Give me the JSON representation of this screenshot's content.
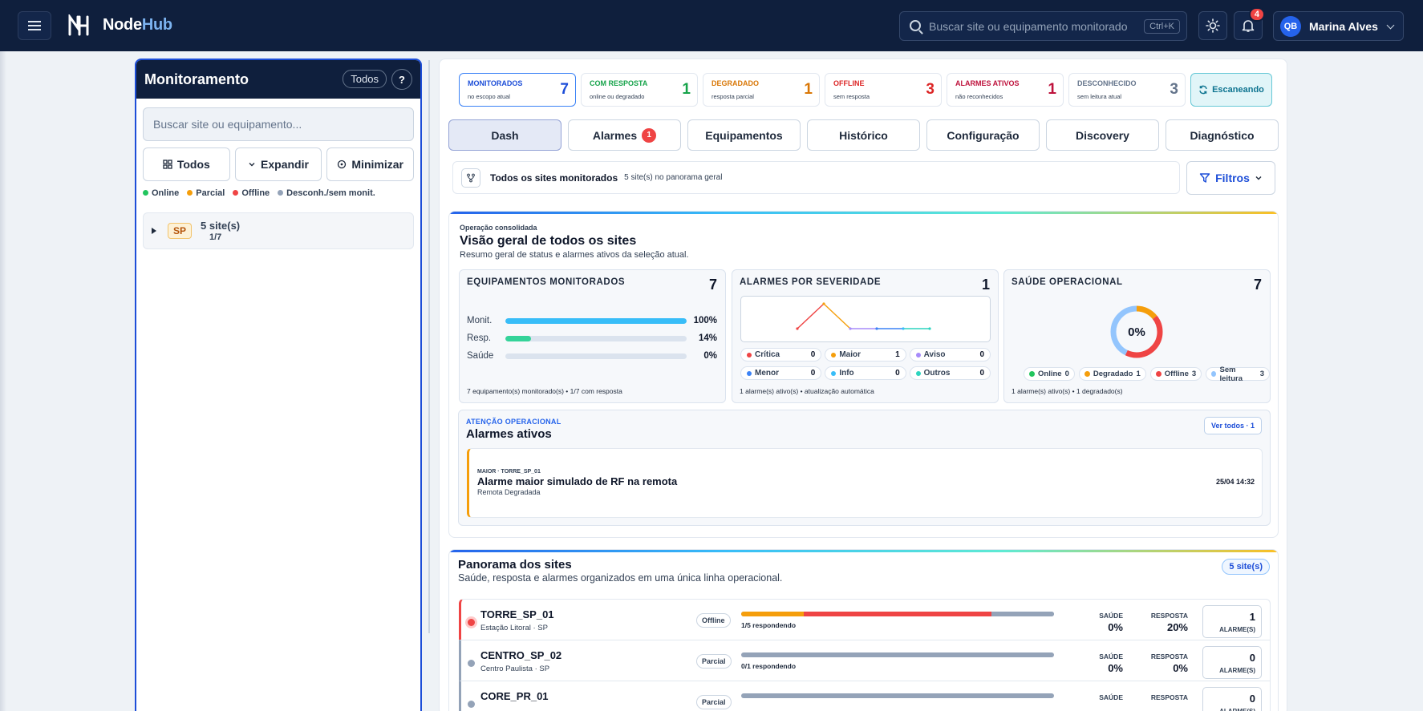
{
  "app": {
    "brand_main": "Node",
    "brand_accent": "Hub"
  },
  "header": {
    "search_placeholder": "Buscar site ou equipamento monitorado",
    "search_shortcut": "Ctrl+K",
    "notifications_count": "4",
    "user_initials": "QB",
    "user_name": "Marina Alves"
  },
  "sidebar": {
    "title": "Monitoramento",
    "filter_chip": "Todos",
    "help": "?",
    "search_placeholder": "Buscar site ou equipamento...",
    "actions": [
      "Todos",
      "Expandir",
      "Minimizar"
    ],
    "legend": [
      {
        "label": "Online",
        "color": "#22c55e"
      },
      {
        "label": "Parcial",
        "color": "#f59e0b"
      },
      {
        "label": "Offline",
        "color": "#ef4444"
      },
      {
        "label": "Desconh./sem monit.",
        "color": "#94a3b8"
      }
    ],
    "group": {
      "region": "SP",
      "sites": "5 site(s)",
      "count": "1/7"
    }
  },
  "kpis": [
    {
      "title": "MONITORADOS",
      "sub": "no escopo atual",
      "value": "7",
      "color": "#1d4ed8"
    },
    {
      "title": "COM RESPOSTA",
      "sub": "online ou degradado",
      "value": "1",
      "color": "#16a34a"
    },
    {
      "title": "DEGRADADO",
      "sub": "resposta parcial",
      "value": "1",
      "color": "#d97706"
    },
    {
      "title": "OFFLINE",
      "sub": "sem resposta",
      "value": "3",
      "color": "#dc2626"
    },
    {
      "title": "ALARMES ATIVOS",
      "sub": "não reconhecidos",
      "value": "1",
      "color": "#be123c"
    },
    {
      "title": "DESCONHECIDO",
      "sub": "sem leitura atual",
      "value": "3",
      "color": "#64748b"
    }
  ],
  "scan_label": "Escaneando",
  "tabs": [
    {
      "label": "Dash",
      "badge": ""
    },
    {
      "label": "Alarmes",
      "badge": "1"
    },
    {
      "label": "Equipamentos",
      "badge": ""
    },
    {
      "label": "Histórico",
      "badge": ""
    },
    {
      "label": "Configuração",
      "badge": ""
    },
    {
      "label": "Discovery",
      "badge": ""
    },
    {
      "label": "Diagnóstico",
      "badge": ""
    }
  ],
  "scope": {
    "title": "Todos os sites monitorados",
    "sub": "5 site(s) no panorama geral",
    "filters": "Filtros"
  },
  "overview": {
    "kicker": "Operação consolidada",
    "title": "Visão geral de todos os sites",
    "sub": "Resumo geral de status e alarmes ativos da seleção atual."
  },
  "equipamentos": {
    "title": "EQUIPAMENTOS MONITORADOS",
    "value": "7",
    "bars": [
      {
        "label": "Monit.",
        "pct": 100,
        "text": "100%",
        "color": "#38bdf8"
      },
      {
        "label": "Resp.",
        "pct": 14,
        "text": "14%",
        "color": "#34d399"
      },
      {
        "label": "Saúde",
        "pct": 0,
        "text": "0%",
        "color": "#94a3b8"
      }
    ],
    "footer": "7 equipamento(s) monitorado(s) • 1/7 com resposta"
  },
  "severidade": {
    "title": "ALARMES POR SEVERIDADE",
    "value": "1",
    "chips": [
      {
        "label": "Crítica",
        "value": "0",
        "color": "#ef4444"
      },
      {
        "label": "Maior",
        "value": "1",
        "color": "#f59e0b"
      },
      {
        "label": "Aviso",
        "value": "0",
        "color": "#a78bfa"
      },
      {
        "label": "Menor",
        "value": "0",
        "color": "#3b82f6"
      },
      {
        "label": "Info",
        "value": "0",
        "color": "#38bdf8"
      },
      {
        "label": "Outros",
        "value": "0",
        "color": "#2dd4bf"
      }
    ],
    "footer": "1 alarme(s) ativo(s) • atualização automática"
  },
  "saude": {
    "title": "SAÚDE OPERACIONAL",
    "value": "7",
    "center": "0%",
    "chips": [
      {
        "label": "Online",
        "value": "0",
        "color": "#22c55e"
      },
      {
        "label": "Degradado",
        "value": "1",
        "color": "#f59e0b"
      },
      {
        "label": "Offline",
        "value": "3",
        "color": "#ef4444"
      },
      {
        "label": "Sem leitura",
        "value": "3",
        "color": "#93c5fd"
      }
    ],
    "footer": "1 alarme(s) ativo(s) • 1 degradado(s)"
  },
  "alarms": {
    "kicker": "ATENÇÃO OPERACIONAL",
    "title": "Alarmes ativos",
    "button": "Ver todos · 1",
    "item": {
      "meta": "MAIOR · TORRE_SP_01",
      "title": "Alarme maior simulado de RF na remota",
      "sub": "Remota Degradada",
      "time": "25/04 14:32"
    }
  },
  "panorama": {
    "title": "Panorama dos sites",
    "sub": "Saúde, resposta e alarmes organizados em uma única linha operacional.",
    "count": "5 site(s)",
    "health_label": "SAÚDE",
    "response_label": "RESPOSTA",
    "alarms_label": "ALARME(S)",
    "sites": [
      {
        "name": "TORRE_SP_01",
        "loc": "Estação Litoral · SP",
        "status": "Offline",
        "resp": "1/5 respondendo",
        "health": "0%",
        "response": "20%",
        "alarms": "1",
        "dot": "#ef4444",
        "edge": "#ef4444",
        "seg": [
          20,
          60,
          20
        ]
      },
      {
        "name": "CENTRO_SP_02",
        "loc": "Centro Paulista · SP",
        "status": "Parcial",
        "resp": "0/1 respondendo",
        "health": "0%",
        "response": "0%",
        "alarms": "0",
        "dot": "#94a3b8",
        "edge": "#94a3b8",
        "seg": [
          0,
          0,
          100
        ]
      },
      {
        "name": "CORE_PR_01",
        "loc": "",
        "status": "Parcial",
        "resp": "",
        "health": "",
        "response": "",
        "alarms": "0",
        "dot": "#94a3b8",
        "edge": "#94a3b8",
        "seg": [
          0,
          0,
          100
        ]
      }
    ]
  }
}
